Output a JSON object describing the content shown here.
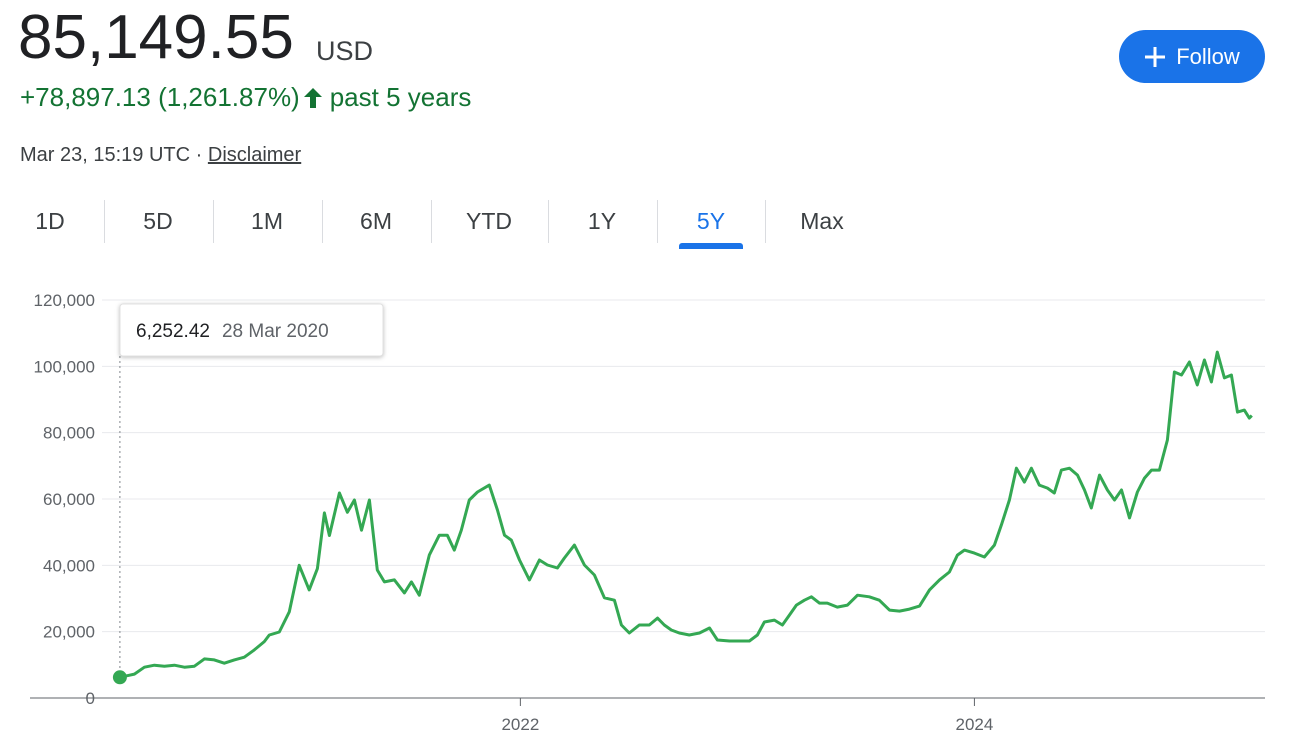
{
  "header": {
    "price": "85,149.55",
    "currency": "USD",
    "change": "+78,897.13 (1,261.87%)",
    "period": "past 5 years",
    "timestamp": "Mar 23, 15:19 UTC",
    "separator": "·",
    "disclaimer": "Disclaimer",
    "follow": "Follow"
  },
  "tabs": {
    "items": [
      "1D",
      "5D",
      "1M",
      "6M",
      "YTD",
      "1Y",
      "5Y",
      "Max"
    ],
    "active": 6
  },
  "chart_data": {
    "type": "line",
    "x": [
      2020.236,
      2020.3,
      2020.344,
      2020.388,
      2020.432,
      2020.476,
      2020.52,
      2020.564,
      2020.608,
      2020.652,
      2020.696,
      2020.74,
      2020.784,
      2020.828,
      2020.872,
      2020.894,
      2020.938,
      2020.982,
      2021.026,
      2021.07,
      2021.106,
      2021.137,
      2021.159,
      2021.203,
      2021.238,
      2021.269,
      2021.3,
      2021.335,
      2021.37,
      2021.401,
      2021.445,
      2021.489,
      2021.52,
      2021.555,
      2021.599,
      2021.643,
      2021.678,
      2021.709,
      2021.74,
      2021.775,
      2021.811,
      2021.863,
      2021.899,
      2021.93,
      2021.96,
      2021.996,
      2022.04,
      2022.084,
      2022.119,
      2022.163,
      2022.194,
      2022.238,
      2022.282,
      2022.326,
      2022.37,
      2022.414,
      2022.445,
      2022.48,
      2022.524,
      2022.568,
      2022.604,
      2022.634,
      2022.665,
      2022.7,
      2022.744,
      2022.789,
      2022.833,
      2022.868,
      2022.921,
      2022.965,
      2023.009,
      2023.044,
      2023.075,
      2023.119,
      2023.154,
      2023.185,
      2023.216,
      2023.251,
      2023.282,
      2023.317,
      2023.352,
      2023.396,
      2023.441,
      2023.485,
      2023.537,
      2023.581,
      2023.626,
      2023.67,
      2023.714,
      2023.758,
      2023.802,
      2023.846,
      2023.89,
      2023.925,
      2023.956,
      2024.0,
      2024.044,
      2024.088,
      2024.119,
      2024.154,
      2024.185,
      2024.22,
      2024.251,
      2024.286,
      2024.322,
      2024.352,
      2024.383,
      2024.419,
      2024.454,
      2024.485,
      2024.515,
      2024.551,
      2024.586,
      2024.617,
      2024.648,
      2024.683,
      2024.718,
      2024.749,
      2024.78,
      2024.815,
      2024.85,
      2024.881,
      2024.912,
      2024.947,
      2024.982,
      2025.013,
      2025.044,
      2025.07,
      2025.101,
      2025.132,
      2025.159,
      2025.189,
      2025.211,
      2025.222
    ],
    "series": [
      {
        "color": "#34a853",
        "values": [
          6252.42,
          7200,
          9300,
          9900,
          9600,
          9900,
          9300,
          9600,
          11800,
          11500,
          10500,
          11500,
          12300,
          14500,
          17000,
          19000,
          19900,
          26000,
          40000,
          32600,
          39000,
          55800,
          49000,
          61800,
          56000,
          59700,
          50600,
          59700,
          38600,
          35000,
          35600,
          31700,
          35000,
          31000,
          43100,
          49100,
          49100,
          44600,
          50600,
          59700,
          62100,
          64200,
          56700,
          49100,
          47600,
          41600,
          35600,
          41600,
          40100,
          39200,
          42200,
          46100,
          40100,
          37100,
          30200,
          29500,
          22000,
          19600,
          22000,
          22000,
          24100,
          22000,
          20500,
          19600,
          19000,
          19600,
          21100,
          17500,
          17200,
          17200,
          17200,
          19000,
          22900,
          23500,
          22000,
          25000,
          28000,
          29500,
          30500,
          28600,
          28600,
          27400,
          28000,
          31000,
          30500,
          29500,
          26500,
          26200,
          26800,
          27700,
          32600,
          35600,
          38000,
          43100,
          44600,
          43700,
          42500,
          46100,
          52200,
          59700,
          69300,
          65100,
          69300,
          64200,
          63300,
          61800,
          68700,
          69300,
          67200,
          62700,
          57300,
          67200,
          62700,
          59700,
          62700,
          54300,
          62100,
          66300,
          68700,
          68700,
          77800,
          98300,
          97400,
          101300,
          94400,
          101900,
          95300,
          104300,
          96500,
          97400,
          86200,
          86800,
          84400,
          85149.55
        ]
      }
    ],
    "xlim": [
      2019.84,
      2025.28
    ],
    "xticks": [
      2022,
      2024
    ],
    "ylim": [
      0,
      120000
    ],
    "yticks": [
      0,
      {
        "value": 20000,
        "label": "20,000"
      },
      {
        "value": 40000,
        "label": "40,000"
      },
      {
        "value": 60000,
        "label": "60,000"
      },
      {
        "value": 80000,
        "label": "80,000"
      },
      {
        "value": 100000,
        "label": "100,000"
      },
      {
        "value": 120000,
        "label": "120,000"
      }
    ],
    "grid": true,
    "tooltip": {
      "value_label": "6,252.42",
      "date": "28 Mar 2020"
    }
  }
}
